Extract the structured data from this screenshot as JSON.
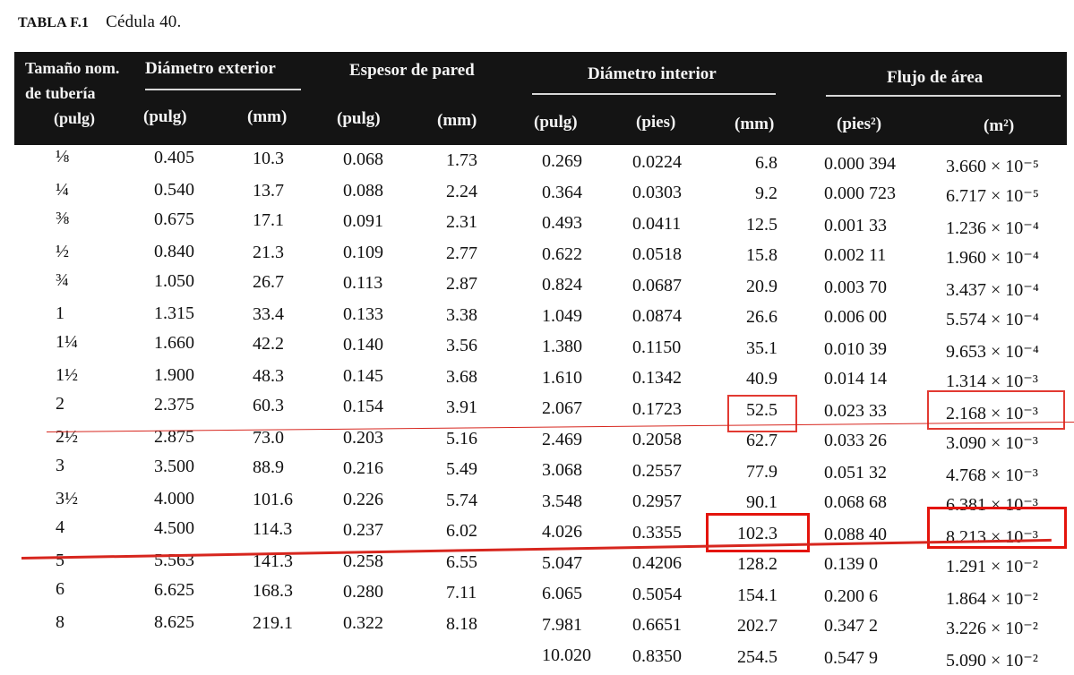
{
  "caption": {
    "label": "TABLA F.1",
    "text": "Cédula 40."
  },
  "header": {
    "nominal_line1": "Tamaño nom.",
    "nominal_line2": "de tubería",
    "nominal_line3": "(pulg)",
    "outer_diameter": "Diámetro exterior",
    "wall_thickness": "Espesor de pared",
    "inner_diameter": "Diámetro interior",
    "flow_area": "Flujo de área",
    "units": [
      "(pulg)",
      "(mm)",
      "(pulg)",
      "(mm)",
      "(pulg)",
      "(pies)",
      "(mm)",
      "(pies²)",
      "(m²)"
    ]
  },
  "rows": [
    [
      "⅛",
      "0.405",
      "10.3",
      "0.068",
      "1.73",
      "0.269",
      "0.0224",
      "6.8",
      "0.000 394",
      "3.660 × 10⁻⁵"
    ],
    [
      "¼",
      "0.540",
      "13.7",
      "0.088",
      "2.24",
      "0.364",
      "0.0303",
      "9.2",
      "0.000 723",
      "6.717 × 10⁻⁵"
    ],
    [
      "⅜",
      "0.675",
      "17.1",
      "0.091",
      "2.31",
      "0.493",
      "0.0411",
      "12.5",
      "0.001 33",
      "1.236 × 10⁻⁴"
    ],
    [
      "½",
      "0.840",
      "21.3",
      "0.109",
      "2.77",
      "0.622",
      "0.0518",
      "15.8",
      "0.002 11",
      "1.960 × 10⁻⁴"
    ],
    [
      "¾",
      "1.050",
      "26.7",
      "0.113",
      "2.87",
      "0.824",
      "0.0687",
      "20.9",
      "0.003 70",
      "3.437 × 10⁻⁴"
    ],
    [
      "1",
      "1.315",
      "33.4",
      "0.133",
      "3.38",
      "1.049",
      "0.0874",
      "26.6",
      "0.006 00",
      "5.574 × 10⁻⁴"
    ],
    [
      "1¼",
      "1.660",
      "42.2",
      "0.140",
      "3.56",
      "1.380",
      "0.1150",
      "35.1",
      "0.010 39",
      "9.653 × 10⁻⁴"
    ],
    [
      "1½",
      "1.900",
      "48.3",
      "0.145",
      "3.68",
      "1.610",
      "0.1342",
      "40.9",
      "0.014 14",
      "1.314 × 10⁻³"
    ],
    [
      "2",
      "2.375",
      "60.3",
      "0.154",
      "3.91",
      "2.067",
      "0.1723",
      "52.5",
      "0.023 33",
      "2.168 × 10⁻³"
    ],
    [
      "2½",
      "2.875",
      "73.0",
      "0.203",
      "5.16",
      "2.469",
      "0.2058",
      "62.7",
      "0.033 26",
      "3.090 × 10⁻³"
    ],
    [
      "3",
      "3.500",
      "88.9",
      "0.216",
      "5.49",
      "3.068",
      "0.2557",
      "77.9",
      "0.051 32",
      "4.768 × 10⁻³"
    ],
    [
      "3½",
      "4.000",
      "101.6",
      "0.226",
      "5.74",
      "3.548",
      "0.2957",
      "90.1",
      "0.068 68",
      "6.381 × 10⁻³"
    ],
    [
      "4",
      "4.500",
      "114.3",
      "0.237",
      "6.02",
      "4.026",
      "0.3355",
      "102.3",
      "0.088 40",
      "8.213 × 10⁻³"
    ],
    [
      "5",
      "5.563",
      "141.3",
      "0.258",
      "6.55",
      "5.047",
      "0.4206",
      "128.2",
      "0.139 0",
      "1.291 × 10⁻²"
    ],
    [
      "6",
      "6.625",
      "168.3",
      "0.280",
      "7.11",
      "6.065",
      "0.5054",
      "154.1",
      "0.200 6",
      "1.864 × 10⁻²"
    ],
    [
      "8",
      "8.625",
      "219.1",
      "0.322",
      "8.18",
      "7.981",
      "0.6651",
      "202.7",
      "0.347 2",
      "3.226 × 10⁻²"
    ],
    [
      "",
      "",
      "",
      "",
      "",
      "10.020",
      "0.8350",
      "254.5",
      "0.547 9",
      "5.090 × 10⁻²"
    ]
  ],
  "annotations": {
    "color": "#e23a32"
  }
}
